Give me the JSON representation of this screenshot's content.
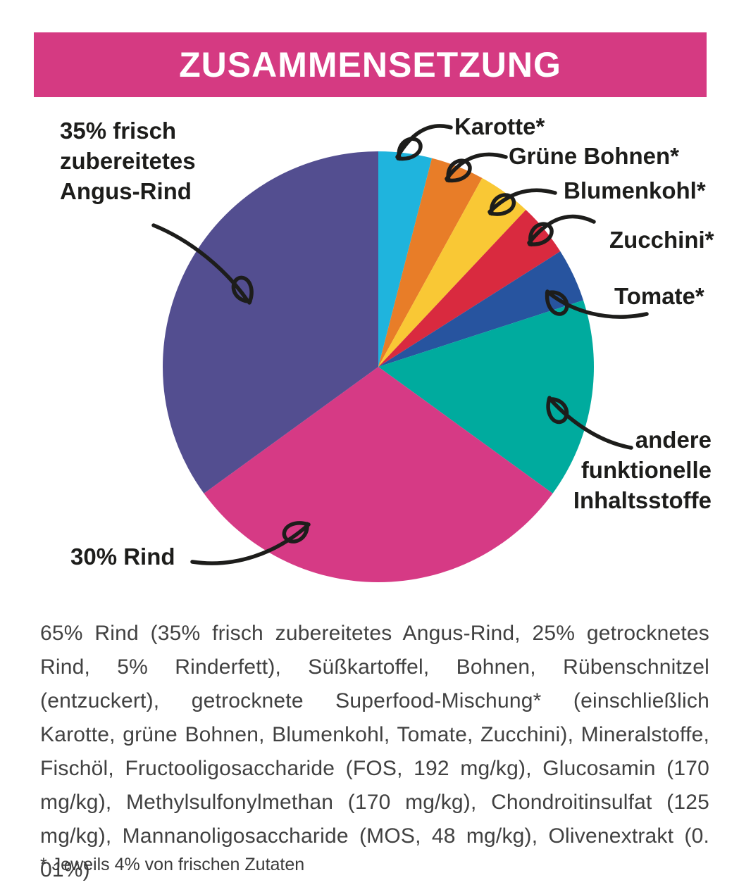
{
  "header": {
    "title": "ZUSAMMENSETZUNG",
    "bg_color": "#d53a82",
    "text_color": "#ffffff"
  },
  "chart_data": {
    "type": "pie",
    "title": "Zusammensetzung",
    "start_angle_deg": 0,
    "direction": "clockwise-from-12-oclock",
    "unit": "percent",
    "slices": [
      {
        "id": "karotte",
        "label": "Karotte*",
        "value": 4,
        "color": "#1fb4dd"
      },
      {
        "id": "gruene-bohnen",
        "label": "Grüne Bohnen*",
        "value": 4,
        "color": "#e87d28"
      },
      {
        "id": "blumenkohl",
        "label": "Blumenkohl*",
        "value": 4,
        "color": "#f9c835"
      },
      {
        "id": "zucchini",
        "label": "Zucchini*",
        "value": 4,
        "color": "#d92a3f"
      },
      {
        "id": "tomate",
        "label": "Tomate*",
        "value": 4,
        "color": "#27549f"
      },
      {
        "id": "andere",
        "label": "andere funktionelle Inhaltsstoffe",
        "value": 15,
        "color": "#00ab9e"
      },
      {
        "id": "rind-30",
        "label": "30% Rind",
        "value": 30,
        "color": "#d63a85"
      },
      {
        "id": "angus-35",
        "label": "35% frisch zubereitetes Angus-Rind",
        "value": 35,
        "color": "#534e90"
      }
    ]
  },
  "callouts": {
    "angus": {
      "lines": [
        "35% frisch",
        "zubereitetes",
        "Angus-Rind"
      ]
    },
    "karotte": {
      "text": "Karotte*"
    },
    "gruene": {
      "text": "Grüne Bohnen*"
    },
    "blumen": {
      "text": "Blumenkohl*"
    },
    "zucchini": {
      "text": "Zucchini*"
    },
    "tomate": {
      "text": "Tomate*"
    },
    "andere": {
      "lines": [
        "andere",
        "funktionelle",
        "Inhaltsstoffe"
      ]
    },
    "rind30": {
      "text": "30% Rind"
    }
  },
  "ingredients": {
    "text": "65% Rind (35% frisch zubereitetes Angus-Rind, 25% getrocknetes Rind, 5% Rinderfett), Süßkartoffel, Bohnen, Rübenschnitzel (entzuckert), getrocknete Superfood-Mischung* (einschließlich Karotte, grüne Bohnen, Blumenkohl, Tomate, Zucchini), Mineralstoffe, Fischöl, Fructooligosaccharide (FOS, 192 mg/kg), Glucosamin (170 mg/kg), Methylsulfonylmethan (170 mg/kg), Chondroitinsulfat (125 mg/kg), Mannanoligosaccharide (MOS, 48 mg/kg), Olivenextrakt (0. 01%)",
    "footnote": "* Jeweils 4% von frischen Zutaten"
  }
}
